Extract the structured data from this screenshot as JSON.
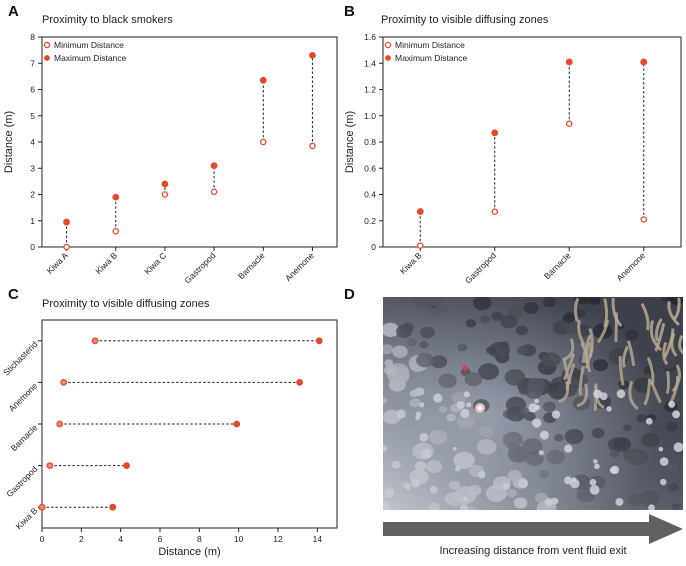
{
  "panels": {
    "a": {
      "letter": "A",
      "title": "Proximity to black smokers"
    },
    "b": {
      "letter": "B",
      "title": "Proximity to visible diffusing zones"
    },
    "c": {
      "letter": "C",
      "title": "Proximity to visible diffusing zones"
    },
    "d": {
      "letter": "D",
      "caption": "Increasing distance from vent fluid exit"
    }
  },
  "legend": {
    "min_label": "Minimum Distance",
    "max_label": "Maximum Distance"
  },
  "colors": {
    "marker": "#e8472a",
    "connector": "#222222",
    "axis": "#222222",
    "arrow": "#5f6062"
  },
  "chart_data": [
    {
      "type": "scatter",
      "title": "Proximity to black smokers",
      "ylabel": "Distance (m)",
      "xlabel": "",
      "categories": [
        "Kiwa A",
        "Kiwa B",
        "Kiwa C",
        "Gastropod",
        "Barnacle",
        "Anemone"
      ],
      "series": [
        {
          "name": "Minimum Distance",
          "values": [
            0.0,
            0.6,
            2.0,
            2.1,
            4.0,
            3.85
          ]
        },
        {
          "name": "Maximum Distance",
          "values": [
            0.95,
            1.9,
            2.4,
            3.1,
            6.35,
            7.3
          ]
        }
      ],
      "ylim": [
        0,
        8
      ],
      "yticks": [
        0,
        1,
        2,
        3,
        4,
        5,
        6,
        7,
        8
      ],
      "grid": false,
      "legend": "top-left"
    },
    {
      "type": "scatter",
      "title": "Proximity to visible diffusing zones",
      "ylabel": "Distance (m)",
      "xlabel": "",
      "categories": [
        "Kiwa B",
        "Gastropod",
        "Barnacle",
        "Anemone"
      ],
      "series": [
        {
          "name": "Minimum Distance",
          "values": [
            0.01,
            0.27,
            0.94,
            0.21
          ]
        },
        {
          "name": "Maximum Distance",
          "values": [
            0.27,
            0.87,
            1.41,
            1.41
          ]
        }
      ],
      "ylim": [
        0,
        1.6
      ],
      "yticks": [
        "0",
        "0.2",
        "0.4",
        "0.6",
        "0.8",
        "1.0",
        "1.2",
        "1.4",
        "1.6"
      ],
      "grid": false,
      "legend": "top-left"
    },
    {
      "type": "scatter",
      "orientation": "horizontal",
      "title": "Proximity to visible diffusing zones",
      "xlabel": "Distance (m)",
      "ylabel": "",
      "categories": [
        "Kiwa B",
        "Gastropod",
        "Barnacle",
        "Anemone",
        "Stichasterid"
      ],
      "series": [
        {
          "values": [
            0.0,
            0.4,
            0.9,
            1.1,
            2.7
          ]
        },
        {
          "values": [
            3.6,
            4.3,
            9.9,
            13.1,
            14.1
          ]
        }
      ],
      "xlim": [
        0,
        15
      ],
      "xticks": [
        0,
        2,
        4,
        6,
        8,
        10,
        12,
        14
      ],
      "grid": false
    }
  ]
}
